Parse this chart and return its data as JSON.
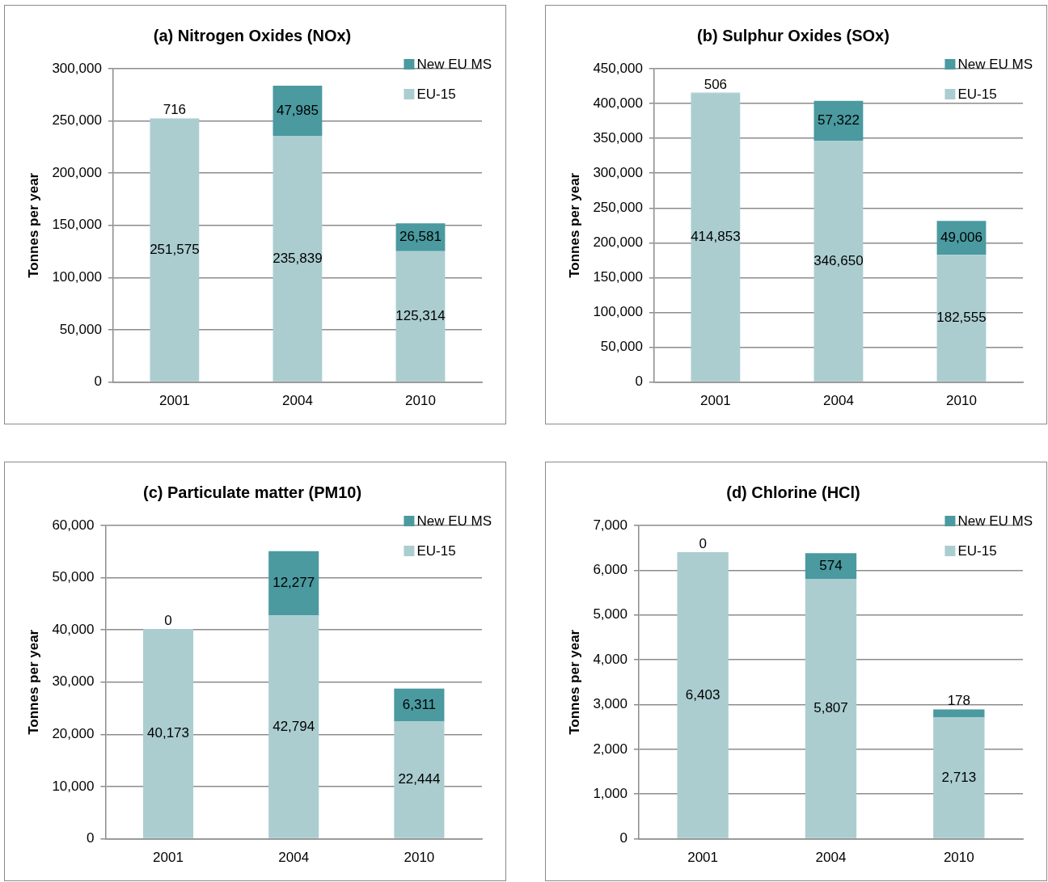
{
  "chart_data": [
    {
      "type": "bar",
      "title": "(a) Nitrogen Oxides (NOx)",
      "ylabel": "Tonnes per year",
      "categories": [
        "2001",
        "2004",
        "2010"
      ],
      "stacked": true,
      "grid": "y",
      "legend": "top right",
      "ylim": [
        0,
        300000
      ],
      "yticks": [
        {
          "value": 0,
          "label": "0"
        },
        {
          "value": 50000,
          "label": "50,000"
        },
        {
          "value": 100000,
          "label": "100,000"
        },
        {
          "value": 150000,
          "label": "150,000"
        },
        {
          "value": 200000,
          "label": "200,000"
        },
        {
          "value": 250000,
          "label": "250,000"
        },
        {
          "value": 300000,
          "label": "300,000"
        }
      ],
      "series": [
        {
          "name": "EU-15",
          "color": "#abcdd0",
          "values": [
            251575,
            235839,
            125314
          ],
          "value_labels": [
            "251,575",
            "235,839",
            "125,314"
          ]
        },
        {
          "name": "New EU MS",
          "color": "#4a9aa0",
          "values": [
            716,
            47985,
            26581
          ],
          "value_labels": [
            "716",
            "47,985",
            "26,581"
          ]
        }
      ]
    },
    {
      "type": "bar",
      "title": "(b) Sulphur Oxides (SOx)",
      "ylabel": "Tonnes per year",
      "categories": [
        "2001",
        "2004",
        "2010"
      ],
      "stacked": true,
      "grid": "y",
      "legend": "top right",
      "ylim": [
        0,
        450000
      ],
      "yticks": [
        {
          "value": 0,
          "label": "0"
        },
        {
          "value": 50000,
          "label": "50,000"
        },
        {
          "value": 100000,
          "label": "100,000"
        },
        {
          "value": 150000,
          "label": "150,000"
        },
        {
          "value": 200000,
          "label": "200,000"
        },
        {
          "value": 250000,
          "label": "250,000"
        },
        {
          "value": 300000,
          "label": "300,000"
        },
        {
          "value": 350000,
          "label": "350,000"
        },
        {
          "value": 400000,
          "label": "400,000"
        },
        {
          "value": 450000,
          "label": "450,000"
        }
      ],
      "series": [
        {
          "name": "EU-15",
          "color": "#abcdd0",
          "values": [
            414853,
            346650,
            182555
          ],
          "value_labels": [
            "414,853",
            "346,650",
            "182,555"
          ]
        },
        {
          "name": "New EU MS",
          "color": "#4a9aa0",
          "values": [
            506,
            57322,
            49006
          ],
          "value_labels": [
            "506",
            "57,322",
            "49,006"
          ]
        }
      ]
    },
    {
      "type": "bar",
      "title": "(c) Particulate matter (PM10)",
      "ylabel": "Tonnes per year",
      "categories": [
        "2001",
        "2004",
        "2010"
      ],
      "stacked": true,
      "grid": "y",
      "legend": "top right",
      "ylim": [
        0,
        60000
      ],
      "yticks": [
        {
          "value": 0,
          "label": "0"
        },
        {
          "value": 10000,
          "label": "10,000"
        },
        {
          "value": 20000,
          "label": "20,000"
        },
        {
          "value": 30000,
          "label": "30,000"
        },
        {
          "value": 40000,
          "label": "40,000"
        },
        {
          "value": 50000,
          "label": "50,000"
        },
        {
          "value": 60000,
          "label": "60,000"
        }
      ],
      "series": [
        {
          "name": "EU-15",
          "color": "#abcdd0",
          "values": [
            40173,
            42794,
            22444
          ],
          "value_labels": [
            "40,173",
            "42,794",
            "22,444"
          ]
        },
        {
          "name": "New EU MS",
          "color": "#4a9aa0",
          "values": [
            0,
            12277,
            6311
          ],
          "value_labels": [
            "0",
            "12,277",
            "6,311"
          ]
        }
      ]
    },
    {
      "type": "bar",
      "title": "(d) Chlorine (HCl)",
      "ylabel": "Tonnes per year",
      "categories": [
        "2001",
        "2004",
        "2010"
      ],
      "stacked": true,
      "grid": "y",
      "legend": "top right",
      "ylim": [
        0,
        7000
      ],
      "yticks": [
        {
          "value": 0,
          "label": "0"
        },
        {
          "value": 1000,
          "label": "1,000"
        },
        {
          "value": 2000,
          "label": "2,000"
        },
        {
          "value": 3000,
          "label": "3,000"
        },
        {
          "value": 4000,
          "label": "4,000"
        },
        {
          "value": 5000,
          "label": "5,000"
        },
        {
          "value": 6000,
          "label": "6,000"
        },
        {
          "value": 7000,
          "label": "7,000"
        }
      ],
      "series": [
        {
          "name": "EU-15",
          "color": "#abcdd0",
          "values": [
            6403,
            5807,
            2713
          ],
          "value_labels": [
            "6,403",
            "5,807",
            "2,713"
          ]
        },
        {
          "name": "New EU MS",
          "color": "#4a9aa0",
          "values": [
            0,
            574,
            178
          ],
          "value_labels": [
            "0",
            "574",
            "178"
          ]
        }
      ]
    }
  ]
}
